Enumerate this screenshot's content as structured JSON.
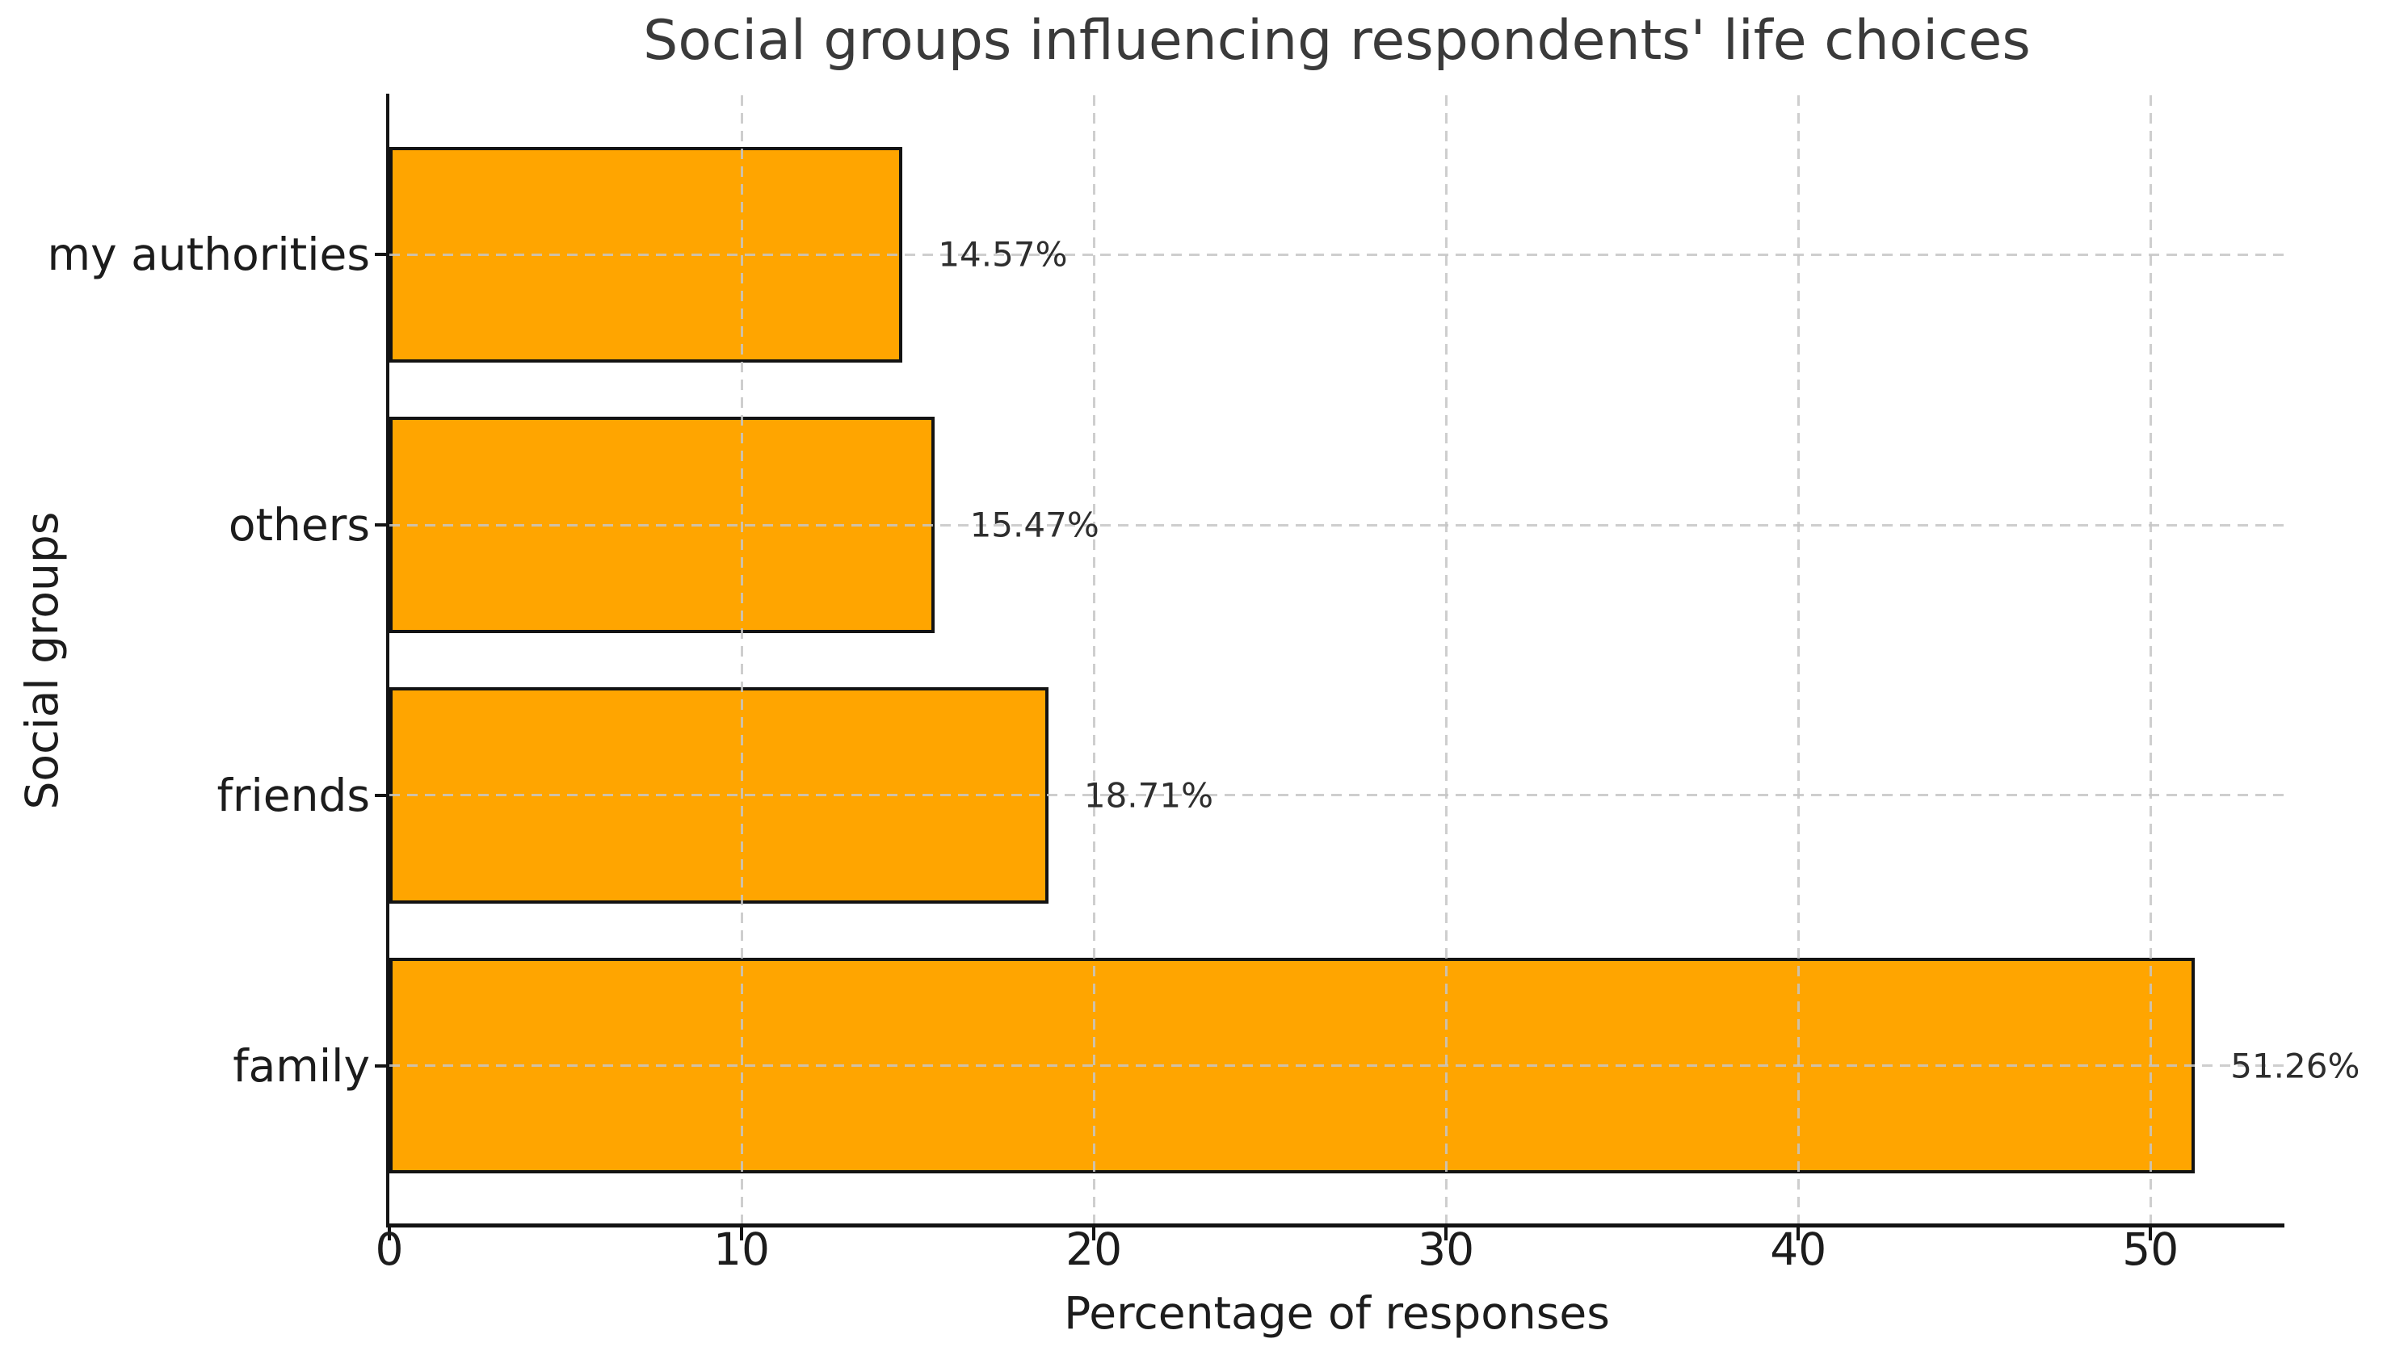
{
  "chart_data": {
    "type": "bar",
    "orientation": "horizontal",
    "title": "Social groups influencing respondents' life choices",
    "xlabel": "Percentage of responses",
    "ylabel": "Social groups",
    "categories": [
      "my authorities",
      "others",
      "friends",
      "family"
    ],
    "values": [
      14.57,
      15.47,
      18.71,
      51.26
    ],
    "value_labels": [
      "14.57%",
      "15.47%",
      "18.71%",
      "51.26%"
    ],
    "xlim": [
      0,
      53.8
    ],
    "xticks": [
      0,
      10,
      20,
      30,
      40,
      50
    ],
    "grid": "dashed",
    "legend": "none",
    "bar_height_fraction": 0.8,
    "outer_margin_units": 0.59,
    "colors": {
      "bar_fill": "#FFA500",
      "bar_edge": "#131313",
      "grid": "#c6c6c6",
      "spine": "#131313",
      "tick": "#131313",
      "title_text": "#3a3a3a",
      "tick_text": "#1c1c1c",
      "annotation_text": "#2e2e2e"
    }
  }
}
